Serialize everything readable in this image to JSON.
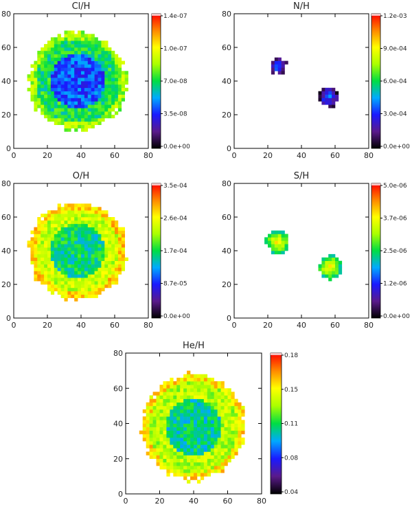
{
  "colors": {
    "colormap": [
      "#000000",
      "#5a1a8c",
      "#1a1aff",
      "#00aaff",
      "#00dd44",
      "#aaff00",
      "#ffff00",
      "#ff8800",
      "#ff0000"
    ],
    "axis": "#000000",
    "grid_overlay": "#dddddd"
  },
  "chart_data": [
    {
      "type": "heatmap",
      "title": "Cl/H",
      "xlim": [
        0,
        80
      ],
      "ylim": [
        0,
        80
      ],
      "xticks": [
        "0",
        "20",
        "40",
        "60",
        "80"
      ],
      "yticks": [
        "0",
        "20",
        "40",
        "60",
        "80"
      ],
      "colorbar": {
        "min": 0.0,
        "max": 1.4e-07,
        "ticks": [
          "1.4e-07",
          "1.0e-07",
          "7.0e-08",
          "3.5e-08",
          "0.0e+00"
        ]
      },
      "map": {
        "shape": "disk",
        "center": [
          38,
          40
        ],
        "radius": 29,
        "typical_level": 0.45
      }
    },
    {
      "type": "heatmap",
      "title": "N/H",
      "xlim": [
        0,
        80
      ],
      "ylim": [
        0,
        80
      ],
      "xticks": [
        "0",
        "20",
        "40",
        "60",
        "80"
      ],
      "yticks": [
        "0",
        "20",
        "40",
        "60",
        "80"
      ],
      "colorbar": {
        "min": 0.0,
        "max": 0.0012,
        "ticks": [
          "1.2e-03",
          "9.0e-04",
          "6.0e-04",
          "3.0e-04",
          "0.0e+00"
        ]
      },
      "map": {
        "shape": "knots",
        "knots": [
          [
            26,
            49,
            5
          ],
          [
            56,
            31,
            6
          ]
        ],
        "typical_level": 0.05
      }
    },
    {
      "type": "heatmap",
      "title": "O/H",
      "xlim": [
        0,
        80
      ],
      "ylim": [
        0,
        80
      ],
      "xticks": [
        "0",
        "20",
        "40",
        "60",
        "80"
      ],
      "yticks": [
        "0",
        "20",
        "40",
        "60",
        "80"
      ],
      "colorbar": {
        "min": 0.0,
        "max": 0.00035,
        "ticks": [
          "3.5e-04",
          "2.6e-04",
          "1.7e-04",
          "8.7e-05",
          "0.0e+00"
        ]
      },
      "map": {
        "shape": "disk",
        "center": [
          38,
          40
        ],
        "radius": 29,
        "typical_level": 0.62
      }
    },
    {
      "type": "heatmap",
      "title": "S/H",
      "xlim": [
        0,
        80
      ],
      "ylim": [
        0,
        80
      ],
      "xticks": [
        "0",
        "20",
        "40",
        "60",
        "80"
      ],
      "yticks": [
        "0",
        "20",
        "40",
        "60",
        "80"
      ],
      "colorbar": {
        "min": 0.0,
        "max": 5e-06,
        "ticks": [
          "5.0e-06",
          "3.7e-06",
          "2.5e-06",
          "1.2e-06",
          "0.0e+00"
        ]
      },
      "map": {
        "shape": "knots",
        "knots": [
          [
            26,
            45,
            7
          ],
          [
            57,
            30,
            7
          ]
        ],
        "typical_level": 0.45
      }
    },
    {
      "type": "heatmap",
      "title": "He/H",
      "xlim": [
        0,
        80
      ],
      "ylim": [
        0,
        80
      ],
      "xticks": [
        "0",
        "20",
        "40",
        "60",
        "80"
      ],
      "yticks": [
        "0",
        "20",
        "40",
        "60",
        "80"
      ],
      "colorbar": {
        "min": 0.04,
        "max": 0.18,
        "ticks": [
          "0.18",
          "0.15",
          "0.11",
          "0.08",
          "0.04"
        ]
      },
      "map": {
        "shape": "disk",
        "center": [
          40,
          38
        ],
        "radius": 30,
        "typical_level": 0.6
      }
    }
  ]
}
